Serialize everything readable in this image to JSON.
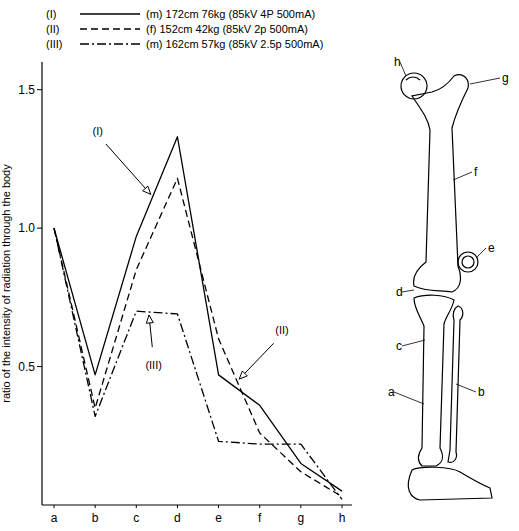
{
  "chart_data": {
    "type": "line",
    "y_label": "ratio of the intensity of radiation through the body",
    "categories": [
      "a",
      "b",
      "c",
      "d",
      "e",
      "f",
      "g",
      "h"
    ],
    "ylim": [
      0,
      1.6
    ],
    "yticks": [
      0.5,
      {
        "value": 1,
        "label": "1.0"
      },
      1.5
    ],
    "grid": false,
    "legend": "top",
    "series": [
      {
        "name": "(I)",
        "description": "(m) 172cm 76kg (85kV 4P 500mA)",
        "color": "#000000",
        "line_style": "solid",
        "values": [
          1.0,
          0.47,
          0.97,
          1.33,
          0.47,
          0.36,
          0.15,
          0.05
        ]
      },
      {
        "name": "(II)",
        "description": "(f) 152cm 42kg (85kV 2p 500mA)",
        "color": "#000000",
        "line_style": "dashed",
        "values": [
          1.0,
          0.35,
          0.85,
          1.18,
          0.6,
          0.26,
          0.12,
          0.03
        ]
      },
      {
        "name": "(III)",
        "description": "(m) 162cm 57kg (85kV 2.5p 500mA)",
        "color": "#000000",
        "line_style": "dashdot",
        "values": [
          1.0,
          0.32,
          0.7,
          0.69,
          0.23,
          0.22,
          0.22,
          0.02
        ]
      }
    ]
  }
}
